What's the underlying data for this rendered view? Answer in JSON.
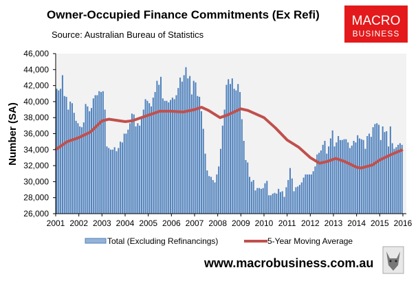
{
  "header": {
    "title": "Owner-Occupied Finance Commitments (Ex Refi)",
    "source": "Source: Australian  Bureau of Statistics"
  },
  "logo": {
    "line1": "MACRO",
    "line2": "BUSINESS",
    "color": "#e3191b"
  },
  "footer": {
    "url": "www.macrobusiness.com.au",
    "icon": "wolf-icon"
  },
  "chart_data": {
    "type": "bar",
    "title": "Owner-Occupied Finance Commitments (Ex Refi)",
    "ylabel": "Number (SA)",
    "xlabel": "",
    "ylim": [
      26000,
      46000
    ],
    "yticks": [
      "26,000",
      "28,000",
      "30,000",
      "32,000",
      "34,000",
      "36,000",
      "38,000",
      "40,000",
      "42,000",
      "44,000",
      "46,000"
    ],
    "xticks": [
      "2001",
      "2002",
      "2003",
      "2004",
      "2005",
      "2006",
      "2007",
      "2008",
      "2009",
      "2010",
      "2011",
      "2012",
      "2013",
      "2014",
      "2015",
      "2016"
    ],
    "xlim": [
      2001,
      2016
    ],
    "grid": false,
    "legend": "bottom",
    "series": [
      {
        "name": "Total (Excluding Refinancings)",
        "type": "bar",
        "color": "#4f81bd",
        "start": "2001-01",
        "frequency": "monthly",
        "values": [
          41600,
          41400,
          41600,
          43300,
          40700,
          40600,
          39000,
          40000,
          39800,
          38600,
          37600,
          37300,
          36900,
          36800,
          37400,
          39700,
          39400,
          38800,
          39200,
          40400,
          40800,
          40800,
          41300,
          41200,
          41300,
          39000,
          34400,
          34200,
          34000,
          34000,
          34300,
          33800,
          34200,
          35000,
          34900,
          36000,
          36000,
          36500,
          37300,
          38500,
          38400,
          36900,
          37300,
          37000,
          38100,
          39000,
          40300,
          40100,
          39800,
          39400,
          40500,
          41200,
          42600,
          42100,
          43100,
          40400,
          40100,
          40100,
          39900,
          40200,
          40500,
          40300,
          40800,
          41700,
          43000,
          42500,
          43300,
          44300,
          42900,
          43200,
          40900,
          42600,
          42400,
          40700,
          40600,
          38800,
          36600,
          33500,
          31400,
          30700,
          30600,
          30200,
          29900,
          30900,
          31900,
          34100,
          37000,
          39000,
          42100,
          42800,
          42200,
          42900,
          41600,
          41400,
          42200,
          41200,
          37800,
          35100,
          32700,
          32400,
          30600,
          30000,
          30200,
          28900,
          29200,
          29200,
          29100,
          29200,
          29800,
          30100,
          28300,
          28300,
          28500,
          28600,
          28500,
          29100,
          28700,
          28800,
          28100,
          29300,
          30200,
          31700,
          30400,
          28800,
          29300,
          29400,
          29600,
          29900,
          30500,
          30900,
          30900,
          30900,
          30900,
          31300,
          31900,
          33400,
          33600,
          33900,
          34600,
          35100,
          33500,
          34400,
          35400,
          36400,
          34400,
          34900,
          35700,
          35200,
          35200,
          35300,
          35300,
          34900,
          34200,
          34500,
          35100,
          34900,
          35800,
          35400,
          35300,
          35200,
          34100,
          35700,
          36000,
          35600,
          36800,
          37200,
          37300,
          37100,
          35200,
          36900,
          36200,
          36300,
          34400,
          36900,
          34800,
          34100,
          34300,
          34600,
          34800,
          34600
        ]
      },
      {
        "name": "5-Year Moving Average",
        "type": "line",
        "color": "#c0504d",
        "points": [
          [
            2001.0,
            34000
          ],
          [
            2001.5,
            35000
          ],
          [
            2002.0,
            35500
          ],
          [
            2002.5,
            36200
          ],
          [
            2003.0,
            37600
          ],
          [
            2003.3,
            37800
          ],
          [
            2004.0,
            37500
          ],
          [
            2004.3,
            37600
          ],
          [
            2005.0,
            38300
          ],
          [
            2005.5,
            38800
          ],
          [
            2006.0,
            38800
          ],
          [
            2006.5,
            38700
          ],
          [
            2007.0,
            39000
          ],
          [
            2007.3,
            39300
          ],
          [
            2007.6,
            38900
          ],
          [
            2008.1,
            38000
          ],
          [
            2008.4,
            38300
          ],
          [
            2009.0,
            39100
          ],
          [
            2009.3,
            38900
          ],
          [
            2010.0,
            38000
          ],
          [
            2010.5,
            36700
          ],
          [
            2011.0,
            35200
          ],
          [
            2011.5,
            34300
          ],
          [
            2012.0,
            33000
          ],
          [
            2012.4,
            32300
          ],
          [
            2012.7,
            32500
          ],
          [
            2013.1,
            32900
          ],
          [
            2013.5,
            32500
          ],
          [
            2014.0,
            31800
          ],
          [
            2014.2,
            31700
          ],
          [
            2014.7,
            32100
          ],
          [
            2015.0,
            32700
          ],
          [
            2015.5,
            33400
          ],
          [
            2016.0,
            34000
          ]
        ]
      }
    ]
  }
}
